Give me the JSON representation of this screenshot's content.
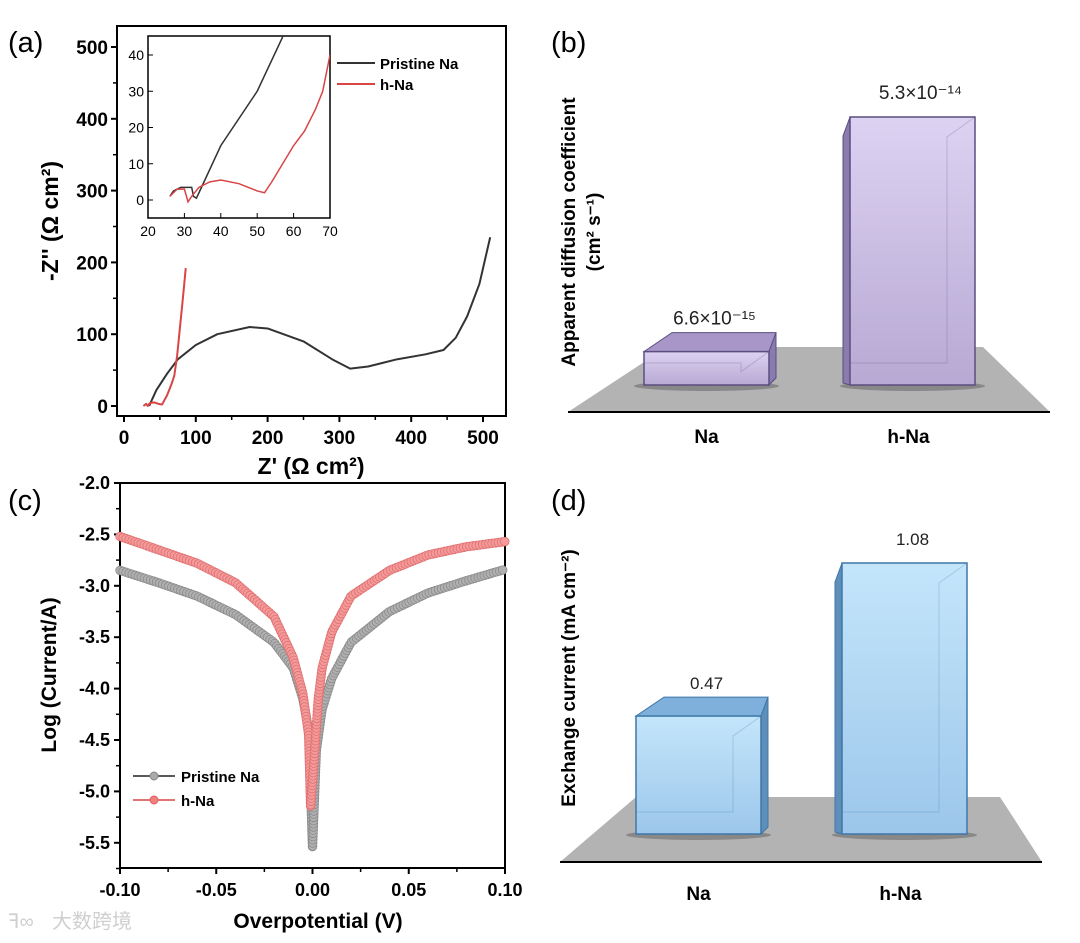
{
  "panel_labels": {
    "a": "(a)",
    "b": "(b)",
    "c": "(c)",
    "d": "(d)"
  },
  "watermark": "大数跨境",
  "chart_data": [
    {
      "id": "a",
      "type": "line",
      "title": "",
      "xlabel": "Z' (Ω cm²)",
      "ylabel": "-Z'' (Ω cm²)",
      "xlim": [
        -10,
        530
      ],
      "ylim": [
        -15,
        528
      ],
      "xticks": [
        0,
        100,
        200,
        300,
        400,
        500
      ],
      "yticks": [
        0,
        100,
        200,
        300,
        400,
        500
      ],
      "legend": "top-right",
      "colors": {
        "Pristine Na": "#333333",
        "h-Na": "#d94545"
      },
      "series": [
        {
          "name": "Pristine Na",
          "points": [
            [
              35,
              0
            ],
            [
              45,
              22
            ],
            [
              60,
              45
            ],
            [
              75,
              65
            ],
            [
              100,
              85
            ],
            [
              130,
              100
            ],
            [
              175,
              110
            ],
            [
              200,
              108
            ],
            [
              250,
              90
            ],
            [
              290,
              65
            ],
            [
              315,
              52
            ],
            [
              340,
              55
            ],
            [
              380,
              65
            ],
            [
              420,
              72
            ],
            [
              445,
              78
            ],
            [
              462,
              95
            ],
            [
              478,
              125
            ],
            [
              495,
              170
            ],
            [
              510,
              235
            ]
          ]
        },
        {
          "name": "h-Na",
          "points": [
            [
              27,
              0
            ],
            [
              31,
              3
            ],
            [
              33,
              0
            ],
            [
              36,
              4
            ],
            [
              42,
              5
            ],
            [
              48,
              3
            ],
            [
              53,
              2
            ],
            [
              60,
              15
            ],
            [
              66,
              30
            ],
            [
              70,
              42
            ],
            [
              74,
              70
            ],
            [
              78,
              110
            ],
            [
              82,
              150
            ],
            [
              86,
              192
            ]
          ]
        }
      ],
      "inset": {
        "xlim": [
          20,
          70
        ],
        "ylim": [
          -5,
          45
        ],
        "xticks": [
          20,
          30,
          40,
          50,
          60,
          70
        ],
        "yticks": [
          0,
          10,
          20,
          30,
          40
        ],
        "series": [
          {
            "name": "Pristine Na",
            "points": [
              [
                26,
                1
              ],
              [
                27,
                2.5
              ],
              [
                29,
                3.5
              ],
              [
                32,
                3.5
              ],
              [
                32.5,
                1
              ],
              [
                33.3,
                0.5
              ],
              [
                34,
                2
              ],
              [
                40,
                15
              ],
              [
                50,
                30
              ],
              [
                57,
                45
              ]
            ]
          },
          {
            "name": "h-Na",
            "points": [
              [
                26,
                1
              ],
              [
                28,
                3
              ],
              [
                30,
                3
              ],
              [
                31,
                -0.5
              ],
              [
                32,
                1
              ],
              [
                34,
                3.5
              ],
              [
                37,
                5
              ],
              [
                40,
                5.5
              ],
              [
                45,
                4.5
              ],
              [
                50,
                2.5
              ],
              [
                52,
                2
              ],
              [
                54,
                5
              ],
              [
                57,
                10
              ],
              [
                60,
                15
              ],
              [
                63,
                19
              ],
              [
                66,
                25
              ],
              [
                68,
                30
              ],
              [
                70,
                40
              ]
            ]
          }
        ]
      }
    },
    {
      "id": "b",
      "type": "bar",
      "title": "",
      "ylabel": "Apparent diffusion coefficient",
      "ylabel_units": "(cm² s⁻¹)",
      "categories": [
        "Na",
        "h-Na"
      ],
      "values": [
        6.6e-15,
        5.3e-14
      ],
      "data_labels": [
        "6.6×10⁻¹⁵",
        "5.3×10⁻¹⁴"
      ],
      "color": "#c5b8e0"
    },
    {
      "id": "c",
      "type": "scatter",
      "title": "",
      "xlabel": "Overpotential (V)",
      "ylabel": "Log (Current/A)",
      "xlim": [
        -0.1,
        0.1
      ],
      "ylim": [
        -5.75,
        -2.0
      ],
      "xticks": [
        "-0.10",
        "-0.05",
        "0.00",
        "0.05",
        "0.10"
      ],
      "yticks": [
        "-2.0",
        "-2.5",
        "-3.0",
        "-3.5",
        "-4.0",
        "-4.5",
        "-5.0",
        "-5.5"
      ],
      "legend": "bottom-left",
      "colors": {
        "Pristine Na": "#aaaaaa",
        "h-Na": "#f08080"
      },
      "series": [
        {
          "name": "Pristine Na",
          "points": [
            [
              -0.1,
              -2.85
            ],
            [
              -0.08,
              -2.97
            ],
            [
              -0.06,
              -3.1
            ],
            [
              -0.04,
              -3.28
            ],
            [
              -0.02,
              -3.55
            ],
            [
              -0.01,
              -3.8
            ],
            [
              -0.005,
              -4.1
            ],
            [
              -0.002,
              -4.4
            ],
            [
              0,
              -5.55
            ],
            [
              0.002,
              -4.6
            ],
            [
              0.005,
              -4.2
            ],
            [
              0.01,
              -3.9
            ],
            [
              0.02,
              -3.55
            ],
            [
              0.04,
              -3.25
            ],
            [
              0.06,
              -3.07
            ],
            [
              0.08,
              -2.95
            ],
            [
              0.1,
              -2.84
            ]
          ]
        },
        {
          "name": "h-Na",
          "points": [
            [
              -0.1,
              -2.52
            ],
            [
              -0.08,
              -2.65
            ],
            [
              -0.06,
              -2.78
            ],
            [
              -0.04,
              -2.97
            ],
            [
              -0.02,
              -3.3
            ],
            [
              -0.01,
              -3.7
            ],
            [
              -0.005,
              -4.05
            ],
            [
              -0.002,
              -4.45
            ],
            [
              -0.001,
              -5.15
            ],
            [
              0.001,
              -4.65
            ],
            [
              0.003,
              -4.1
            ],
            [
              0.005,
              -3.8
            ],
            [
              0.01,
              -3.45
            ],
            [
              0.02,
              -3.1
            ],
            [
              0.04,
              -2.85
            ],
            [
              0.06,
              -2.7
            ],
            [
              0.08,
              -2.62
            ],
            [
              0.1,
              -2.57
            ]
          ]
        }
      ]
    },
    {
      "id": "d",
      "type": "bar",
      "title": "",
      "ylabel": "Exchange current (mA cm⁻²)",
      "categories": [
        "Na",
        "h-Na"
      ],
      "values": [
        0.47,
        1.08
      ],
      "data_labels": [
        "0.47",
        "1.08"
      ],
      "color": "#a9d3f3"
    }
  ]
}
